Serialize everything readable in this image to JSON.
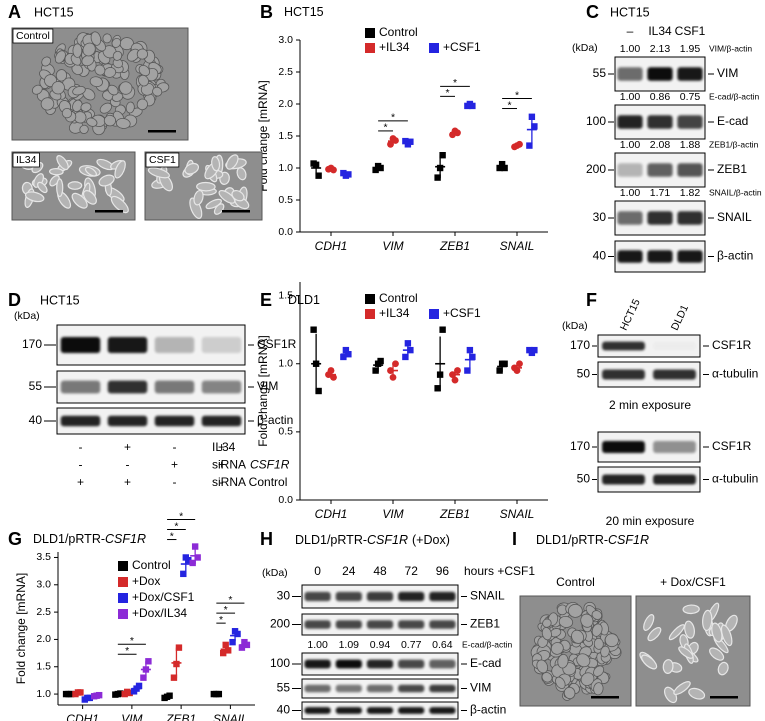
{
  "panels": {
    "A": {
      "letter": "A",
      "title": "HCT15",
      "images": [
        "Control",
        "IL34",
        "CSF1"
      ]
    },
    "C": {
      "letter": "C",
      "title": "HCT15",
      "unit": "(kDa)",
      "lanes": [
        "–",
        "IL34",
        "CSF1"
      ],
      "rows": [
        {
          "kda": 55,
          "protein": "VIM",
          "ratios": [
            "1.00",
            "2.13",
            "1.95"
          ],
          "ratio_label": "VIM/β-actin"
        },
        {
          "kda": 100,
          "protein": "E-cad",
          "ratios": [
            "1.00",
            "0.86",
            "0.75"
          ],
          "ratio_label": "E-cad/β-actin"
        },
        {
          "kda": 200,
          "protein": "ZEB1",
          "ratios": [
            "1.00",
            "2.08",
            "1.88"
          ],
          "ratio_label": "ZEB1/β-actin"
        },
        {
          "kda": 30,
          "protein": "SNAIL",
          "ratios": [
            "1.00",
            "1.71",
            "1.82"
          ],
          "ratio_label": "SNAIL/β-actin"
        },
        {
          "kda": 40,
          "protein": "β-actin"
        }
      ]
    },
    "D": {
      "letter": "D",
      "title": "HCT15",
      "unit": "(kDa)",
      "rows": [
        {
          "kda": 170,
          "protein": "CSF1R"
        },
        {
          "kda": 55,
          "protein": "VIM"
        },
        {
          "kda": 40,
          "protein": "β-actin"
        }
      ],
      "conditions": [
        {
          "label": "IL34",
          "signs": [
            "-",
            "+",
            "-",
            "+"
          ]
        },
        {
          "label": "siRNA",
          "gene": "CSF1R",
          "signs": [
            "-",
            "-",
            "+",
            "+"
          ]
        },
        {
          "label": "siRNA Control",
          "signs": [
            "+",
            "+",
            "-",
            "-"
          ]
        }
      ]
    },
    "F": {
      "letter": "F",
      "unit": "(kDa)",
      "lanes": [
        "HCT15",
        "DLD1"
      ],
      "groups": [
        {
          "rows": [
            {
              "kda": 170,
              "protein": "CSF1R"
            },
            {
              "kda": 50,
              "protein": "α-tubulin"
            }
          ],
          "caption": "2 min exposure"
        },
        {
          "rows": [
            {
              "kda": 170,
              "protein": "CSF1R"
            },
            {
              "kda": 50,
              "protein": "α-tubulin"
            }
          ],
          "caption": "20 min exposure"
        }
      ]
    },
    "H": {
      "letter": "H",
      "title": "DLD1/pRTR-",
      "title_gene": "CSF1R",
      "title_suffix": "(+Dox)",
      "unit": "(kDa)",
      "lanes": [
        0,
        24,
        48,
        72,
        96
      ],
      "lane_unit": "hours +CSF1",
      "rows": [
        {
          "kda": 30,
          "protein": "SNAIL"
        },
        {
          "kda": 200,
          "protein": "ZEB1"
        },
        {
          "kda": 100,
          "protein": "E-cad",
          "ratios": [
            "1.00",
            "1.09",
            "0.94",
            "0.77",
            "0.64"
          ],
          "ratio_label": "E-cad/β-actin"
        },
        {
          "kda": 55,
          "protein": "VIM"
        },
        {
          "kda": 40,
          "protein": "β-actin"
        }
      ]
    },
    "I": {
      "letter": "I",
      "title": "DLD1/pRTR-",
      "title_gene": "CSF1R",
      "images": [
        "Control",
        "+ Dox/CSF1"
      ]
    }
  },
  "chart_data": [
    {
      "type": "dot",
      "letter": "B",
      "title": "HCT15",
      "ylabel": "Fold change [mRNA]",
      "categories": [
        "CDH1",
        "VIM",
        "ZEB1",
        "SNAIL"
      ],
      "ylim": [
        0,
        3
      ],
      "yticks": [
        {
          "value": 0,
          "label": "0.0"
        },
        0.5,
        {
          "value": 1,
          "label": "1.0"
        },
        1.5,
        {
          "value": 2,
          "label": "2.0"
        },
        2.5,
        {
          "value": 3,
          "label": "3.0"
        }
      ],
      "series": [
        {
          "name": "Control",
          "color": "#000000",
          "marker": "square",
          "values": [
            1.0,
            1.0,
            1.02,
            1.02
          ],
          "errors": [
            0.1,
            0.05,
            0.18,
            0.05
          ],
          "points": [
            [
              1.07,
              1.05,
              0.88
            ],
            [
              0.97,
              1.03,
              1.0
            ],
            [
              0.85,
              1.0,
              1.2
            ],
            [
              1.0,
              1.06,
              1.0
            ]
          ]
        },
        {
          "name": "+IL34",
          "color": "#d42a2a",
          "marker": "circle",
          "values": [
            0.98,
            1.42,
            1.55,
            1.35
          ],
          "errors": [
            0.03,
            0.05,
            0.04,
            0.03
          ],
          "points": [
            [
              0.98,
              1.0,
              0.97
            ],
            [
              1.37,
              1.46,
              1.43
            ],
            [
              1.52,
              1.58,
              1.55
            ],
            [
              1.33,
              1.35,
              1.37
            ]
          ]
        },
        {
          "name": "+CSF1",
          "color": "#2424e0",
          "marker": "square",
          "values": [
            0.9,
            1.4,
            1.98,
            1.6
          ],
          "errors": [
            0.03,
            0.04,
            0.03,
            0.22
          ],
          "points": [
            [
              0.92,
              0.88,
              0.9
            ],
            [
              1.42,
              1.37,
              1.41
            ],
            [
              1.97,
              2.0,
              1.97
            ],
            [
              1.35,
              1.8,
              1.65
            ]
          ]
        }
      ],
      "significance": [
        [],
        [
          "*",
          "*"
        ],
        [
          "*",
          "*"
        ],
        [
          "*",
          "*"
        ]
      ]
    },
    {
      "type": "dot",
      "letter": "E",
      "title": "DLD1",
      "ylabel": "Fold change [mRNA]",
      "categories": [
        "CDH1",
        "VIM",
        "ZEB1",
        "SNAIL"
      ],
      "ylim": [
        0,
        1.6
      ],
      "yticks": [
        {
          "value": 0,
          "label": "0.0"
        },
        0.5,
        {
          "value": 1,
          "label": "1.0"
        },
        1.5
      ],
      "series": [
        {
          "name": "Control",
          "color": "#000000",
          "marker": "square",
          "values": [
            1.0,
            0.99,
            1.0,
            0.98
          ],
          "errors": [
            0.22,
            0.05,
            0.2,
            0.04
          ],
          "points": [
            [
              1.25,
              1.0,
              0.8
            ],
            [
              0.95,
              1.0,
              1.02
            ],
            [
              0.82,
              0.92,
              1.25
            ],
            [
              0.95,
              1.0,
              1.0
            ]
          ]
        },
        {
          "name": "+IL34",
          "color": "#d42a2a",
          "marker": "circle",
          "values": [
            0.92,
            0.95,
            0.92,
            0.97
          ],
          "errors": [
            0.03,
            0.05,
            0.04,
            0.03
          ],
          "points": [
            [
              0.92,
              0.95,
              0.9
            ],
            [
              0.95,
              0.9,
              1.0
            ],
            [
              0.92,
              0.88,
              0.95
            ],
            [
              0.97,
              0.95,
              1.0
            ]
          ]
        },
        {
          "name": "+CSF1",
          "color": "#2424e0",
          "marker": "square",
          "values": [
            1.07,
            1.1,
            1.03,
            1.09
          ],
          "errors": [
            0.03,
            0.05,
            0.08,
            0.02
          ],
          "points": [
            [
              1.05,
              1.1,
              1.07
            ],
            [
              1.05,
              1.15,
              1.1
            ],
            [
              0.95,
              1.1,
              1.05
            ],
            [
              1.1,
              1.08,
              1.1
            ]
          ]
        }
      ]
    },
    {
      "type": "dot",
      "letter": "G",
      "title": "DLD1/pRTR-",
      "title_gene": "CSF1R",
      "ylabel": "Fold change [mRNA]",
      "categories": [
        "CDH1",
        "VIM",
        "ZEB1",
        "SNAIL"
      ],
      "ylim": [
        0.8,
        3.6
      ],
      "yticks": [
        {
          "value": 1,
          "label": "1.0"
        },
        1.5,
        {
          "value": 2,
          "label": "2.0"
        },
        2.5,
        {
          "value": 3,
          "label": "3.0"
        },
        3.5
      ],
      "series": [
        {
          "name": "Control",
          "color": "#000000",
          "marker": "square",
          "values": [
            1.0,
            1.0,
            0.95,
            1.0
          ],
          "errors": [
            0.01,
            0.02,
            0.03,
            0.01
          ],
          "points": [
            [
              1.0,
              1.0,
              1.0
            ],
            [
              0.99,
              1.0,
              1.01
            ],
            [
              0.93,
              0.95,
              0.97
            ],
            [
              1.0,
              1.0,
              1.0
            ]
          ]
        },
        {
          "name": "+Dox",
          "color": "#d42a2a",
          "marker": "square",
          "values": [
            1.02,
            1.02,
            1.57,
            1.82
          ],
          "errors": [
            0.03,
            0.03,
            0.28,
            0.07
          ],
          "points": [
            [
              1.0,
              1.03,
              1.03
            ],
            [
              1.0,
              1.04,
              1.02
            ],
            [
              1.3,
              1.55,
              1.85
            ],
            [
              1.75,
              1.9,
              1.8
            ]
          ]
        },
        {
          "name": "+Dox/CSF1",
          "color": "#2424e0",
          "marker": "square",
          "values": [
            0.92,
            1.1,
            3.38,
            2.07
          ],
          "errors": [
            0.02,
            0.05,
            0.15,
            0.1
          ],
          "points": [
            [
              0.9,
              0.93,
              0.93
            ],
            [
              1.05,
              1.1,
              1.15
            ],
            [
              3.2,
              3.5,
              3.45
            ],
            [
              1.95,
              2.15,
              2.1
            ]
          ]
        },
        {
          "name": "+Dox/IL34",
          "color": "#8c2bd6",
          "marker": "square",
          "values": [
            0.97,
            1.45,
            3.53,
            1.9
          ],
          "errors": [
            0.02,
            0.15,
            0.15,
            0.05
          ],
          "points": [
            [
              0.96,
              0.97,
              0.98
            ],
            [
              1.3,
              1.45,
              1.6
            ],
            [
              3.4,
              3.7,
              3.5
            ],
            [
              1.85,
              1.95,
              1.9
            ]
          ]
        }
      ],
      "significance": [
        [],
        [
          "*",
          "*"
        ],
        [
          "*",
          "*",
          "*"
        ],
        [
          "*",
          "*",
          "*"
        ]
      ]
    }
  ]
}
